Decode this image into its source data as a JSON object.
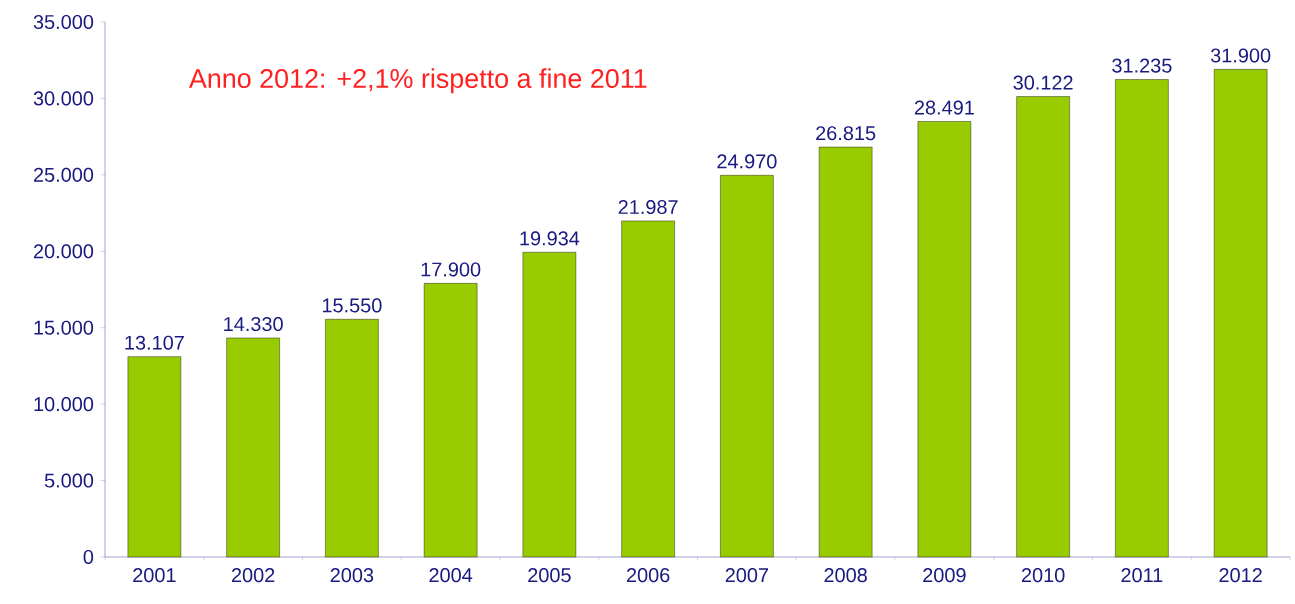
{
  "chart_data": {
    "type": "bar",
    "categories": [
      "2001",
      "2002",
      "2003",
      "2004",
      "2005",
      "2006",
      "2007",
      "2008",
      "2009",
      "2010",
      "2011",
      "2012"
    ],
    "values": [
      13107,
      14330,
      15550,
      17900,
      19934,
      21987,
      24970,
      26815,
      28491,
      30122,
      31235,
      31900
    ],
    "value_labels": [
      "13.107",
      "14.330",
      "15.550",
      "17.900",
      "19.934",
      "21.987",
      "24.970",
      "26.815",
      "28.491",
      "30.122",
      "31.235",
      "31.900"
    ],
    "color": "#99cc00",
    "ylim": [
      0,
      35000
    ],
    "yticks": [
      {
        "value": 0,
        "label": "0"
      },
      {
        "value": 5000,
        "label": "5.000"
      },
      {
        "value": 10000,
        "label": "10.000"
      },
      {
        "value": 15000,
        "label": "15.000"
      },
      {
        "value": 20000,
        "label": "20.000"
      },
      {
        "value": 25000,
        "label": "25.000"
      },
      {
        "value": 30000,
        "label": "30.000"
      },
      {
        "value": 35000,
        "label": "35.000"
      }
    ],
    "annotations": [
      "Anno 2012: +2,1% rispetto a fine 2011"
    ]
  }
}
